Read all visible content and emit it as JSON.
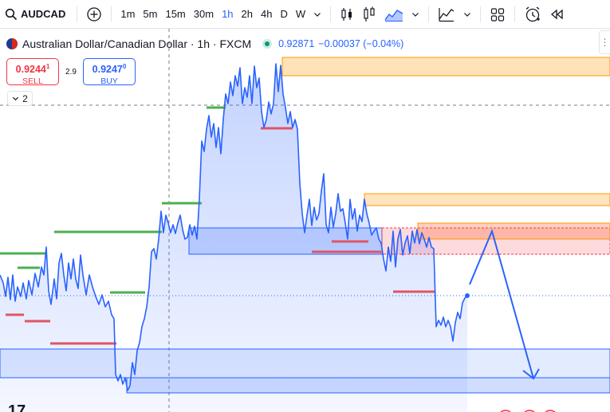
{
  "toolbar": {
    "symbol": "AUDCAD",
    "intervals": [
      {
        "label": "1m",
        "active": false
      },
      {
        "label": "5m",
        "active": false
      },
      {
        "label": "15m",
        "active": false
      },
      {
        "label": "30m",
        "active": false
      },
      {
        "label": "1h",
        "active": true
      },
      {
        "label": "2h",
        "active": false
      },
      {
        "label": "4h",
        "active": false
      },
      {
        "label": "D",
        "active": false
      },
      {
        "label": "W",
        "active": false
      }
    ],
    "icons": [
      "search-icon",
      "add-symbol-icon",
      "interval-dropdown-icon",
      "bar-chart-icon",
      "candlestick-icon",
      "area-chart-icon",
      "chart-type-dropdown-icon",
      "indicators-icon",
      "indicators-dropdown-icon",
      "layout-grid-icon",
      "alert-icon",
      "replay-icon"
    ]
  },
  "legend": {
    "title": "Australian Dollar/Canadian Dollar · 1h · FXCM",
    "price": "0.92871",
    "change": "−0.00037 (−0.04%)",
    "status_color": "#089981"
  },
  "trade": {
    "sell_price_main": "0.9244",
    "sell_price_sup": "1",
    "sell_label": "SELL",
    "spread": "2.9",
    "buy_price_main": "0.9247",
    "buy_price_sup": "0",
    "buy_label": "BUY"
  },
  "collapse": {
    "count": "2"
  },
  "colors": {
    "line": "#2962ff",
    "area_fill": "#2962ff",
    "support_green": "#4caf50",
    "resistance_red": "#e05565",
    "supply_zone": "#ff9800",
    "demand_zone": "#2962ff"
  }
}
